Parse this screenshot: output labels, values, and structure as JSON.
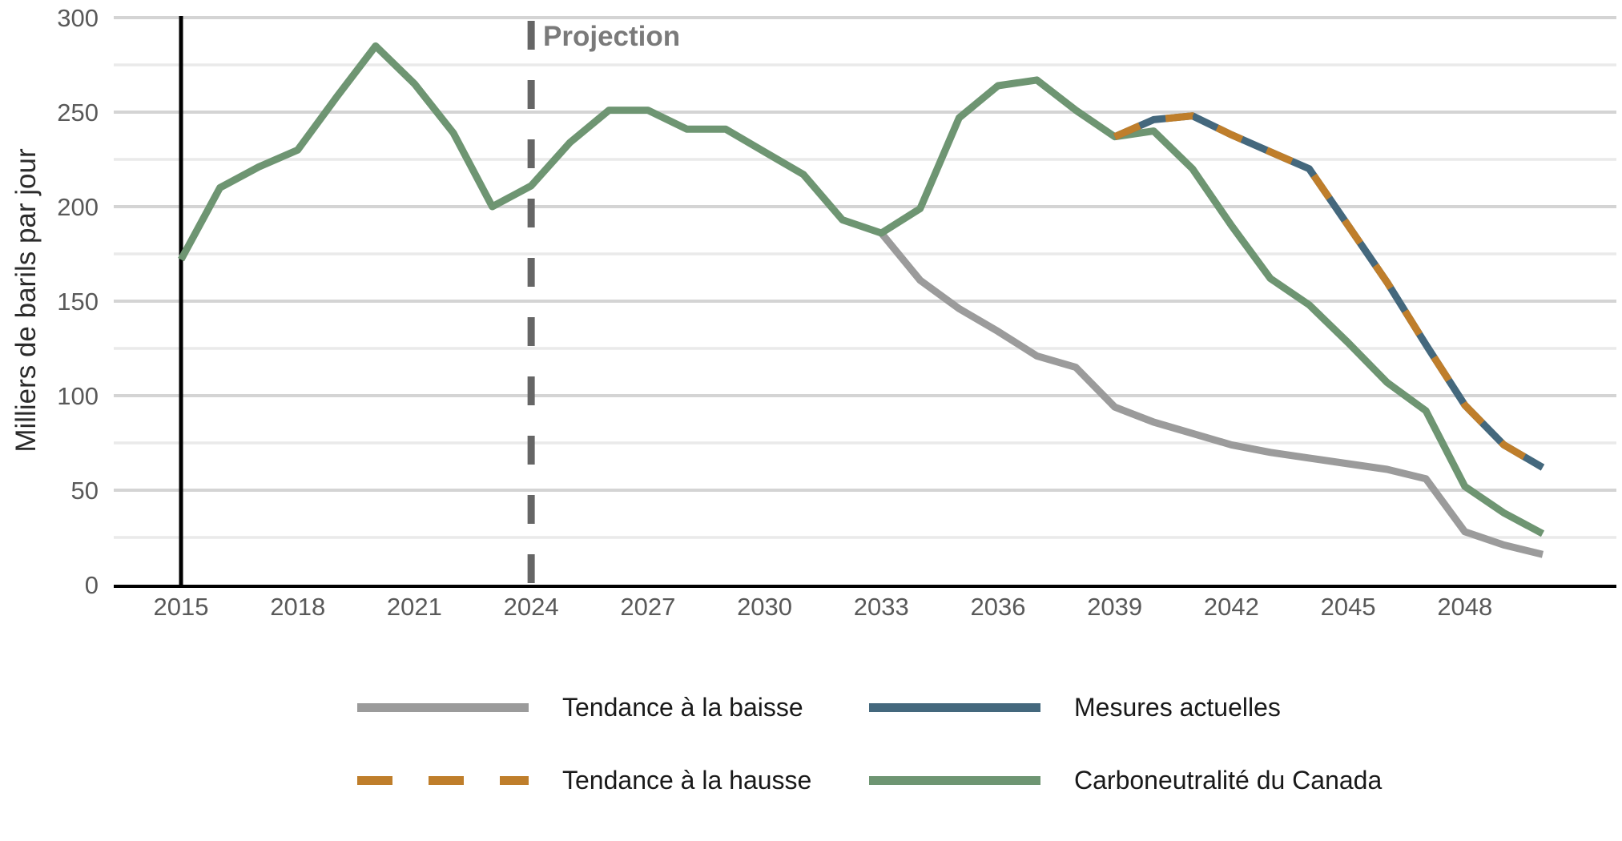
{
  "chart_data": {
    "type": "line",
    "ylabel": "Milliers de barils par jour",
    "ylim": [
      0,
      300
    ],
    "ytick_step": 50,
    "gridline_step": 25,
    "grid": true,
    "legend_position": "bottom",
    "x_ticks": [
      2015,
      2018,
      2021,
      2024,
      2027,
      2030,
      2033,
      2036,
      2039,
      2042,
      2045,
      2048
    ],
    "x": [
      2015,
      2016,
      2017,
      2018,
      2019,
      2020,
      2021,
      2022,
      2023,
      2024,
      2025,
      2026,
      2027,
      2028,
      2029,
      2030,
      2031,
      2032,
      2033,
      2034,
      2035,
      2036,
      2037,
      2038,
      2039,
      2040,
      2041,
      2042,
      2043,
      2044,
      2045,
      2046,
      2047,
      2048,
      2049,
      2050
    ],
    "series": [
      {
        "id": "tendance-baisse",
        "name": "Tendance à la baisse",
        "color": "#9b9b9b",
        "dash": false,
        "values": [
          null,
          null,
          null,
          null,
          null,
          null,
          null,
          null,
          null,
          null,
          null,
          null,
          null,
          null,
          null,
          null,
          null,
          null,
          186,
          161,
          146,
          134,
          121,
          115,
          94,
          86,
          80,
          74,
          70,
          67,
          64,
          61,
          56,
          28,
          21,
          16
        ]
      },
      {
        "id": "carboneutralite-canada",
        "name": "Carboneutralité du Canada",
        "color": "#6e9572",
        "dash": false,
        "values": [
          172,
          210,
          221,
          230,
          258,
          285,
          265,
          239,
          200,
          211,
          234,
          251,
          251,
          241,
          241,
          229,
          217,
          193,
          186,
          199,
          247,
          264,
          267,
          251,
          237,
          240,
          220,
          190,
          162,
          148,
          128,
          107,
          92,
          52,
          38,
          27
        ]
      },
      {
        "id": "mesures-actuelles",
        "name": "Mesures actuelles",
        "color": "#44687d",
        "dash": false,
        "values": [
          null,
          null,
          null,
          null,
          null,
          null,
          null,
          null,
          null,
          null,
          null,
          null,
          null,
          null,
          null,
          null,
          null,
          null,
          null,
          null,
          null,
          null,
          null,
          null,
          237,
          246,
          248,
          238,
          229,
          220,
          190,
          160,
          127,
          95,
          74,
          62
        ]
      },
      {
        "id": "tendance-hausse",
        "name": "Tendance à la hausse",
        "color": "#bf7e2b",
        "dash": true,
        "values": [
          null,
          null,
          null,
          null,
          null,
          null,
          null,
          null,
          null,
          null,
          null,
          null,
          null,
          null,
          null,
          null,
          null,
          null,
          null,
          null,
          null,
          null,
          null,
          null,
          237,
          246,
          248,
          238,
          229,
          220,
          190,
          160,
          127,
          95,
          74,
          62
        ]
      }
    ],
    "annotations": {
      "projection_label": "Projection",
      "projection_year": 2024,
      "history_marker_year": 2015
    },
    "colors": {
      "axis": "#000000",
      "gridline_major": "#d4d4d4",
      "gridline_minor": "#eaeaea",
      "tick_text": "#595959",
      "projection_line": "#666666"
    }
  }
}
